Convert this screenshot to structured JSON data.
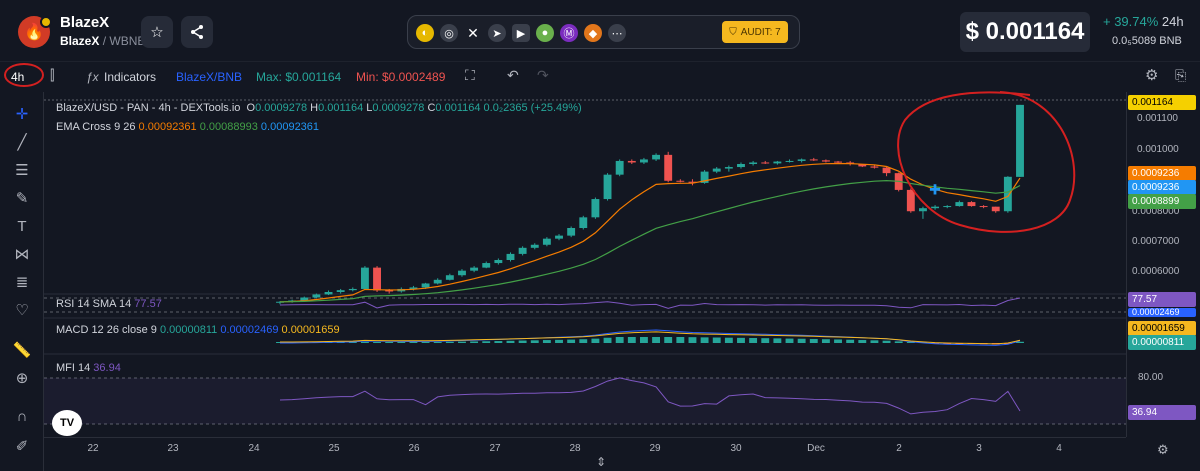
{
  "header": {
    "token_name": "BlazeX",
    "pair_base": "BlazeX",
    "pair_sep": "/",
    "pair_quote": "WBNB",
    "audit_label": "AUDIT: 7",
    "price": "$ 0.001164",
    "change_pct": "+ 39.74%",
    "change_period": "24h",
    "price_bnb": "0.0₅5089",
    "price_bnb_unit": "BNB"
  },
  "toolbar": {
    "timeframe": "4h",
    "indicators_label": "Indicators",
    "pair_switch": "BlazeX/BNB",
    "max_label": "Max: $0.001164",
    "min_label": "Min: $0.0002489"
  },
  "legend": {
    "main_title": "BlazeX/USD - PAN - 4h - DEXTools.io",
    "o_key": "O",
    "o_val": "0.0009278",
    "h_key": "H",
    "h_val": "0.001164",
    "l_key": "L",
    "l_val": "0.0009278",
    "c_key": "C",
    "c_val": "0.001164",
    "change": "0.0₂2365 (+25.49%)",
    "ema_label": "EMA Cross 9 26",
    "ema_v1": "0.00092361",
    "ema_v2": "0.00088993",
    "ema_v3": "0.00092361",
    "rsi_label": "RSI 14 SMA 14",
    "rsi_val": "77.57",
    "macd_label": "MACD 12 26 close 9",
    "macd_v1": "0.00000811",
    "macd_v2": "0.00002469",
    "macd_v3": "0.00001659",
    "mfi_label": "MFI 14",
    "mfi_val": "36.94"
  },
  "price_scale": {
    "ticks": [
      "0.001100",
      "0.001000",
      "0.0008000",
      "0.0007000",
      "0.0006000"
    ],
    "tags": [
      "0.001164",
      "0.0009236",
      "0.0009236",
      "0.0008899"
    ],
    "tag_colors": [
      "#f5d000",
      "#f57c00",
      "#2196f3",
      "#43a047"
    ]
  },
  "rsi_scale": {
    "tag": "77.57"
  },
  "macd_scale": {
    "tags": [
      "0.00002469",
      "0.00001659",
      "0.00000811"
    ]
  },
  "mfi_scale": {
    "tick": "80.00",
    "tag": "36.94"
  },
  "x_axis": {
    "ticks": [
      "22",
      "23",
      "24",
      "25",
      "26",
      "27",
      "28",
      "29",
      "30",
      "Dec",
      "2",
      "3",
      "4"
    ]
  },
  "colors": {
    "up": "#26a69a",
    "down": "#ef5350",
    "ema_fast": "#f57c00",
    "ema_slow": "#43a047",
    "annotation": "#d42020"
  },
  "chart_data": {
    "type": "candlestick",
    "title": "BlazeX/USD - PAN - 4h - DEXTools.io",
    "ylim": [
      0.00055,
      0.00118
    ],
    "candles": [
      [
        0.000515,
        0.00052,
        0.00051,
        0.000518
      ],
      [
        0.000518,
        0.000525,
        0.000515,
        0.000522
      ],
      [
        0.000522,
        0.000535,
        0.00052,
        0.000532
      ],
      [
        0.000532,
        0.000545,
        0.00053,
        0.000542
      ],
      [
        0.000542,
        0.000555,
        0.00054,
        0.00055
      ],
      [
        0.00055,
        0.00056,
        0.000545,
        0.000556
      ],
      [
        0.000556,
        0.000565,
        0.000552,
        0.00056
      ],
      [
        0.00056,
        0.000635,
        0.000558,
        0.00063
      ],
      [
        0.00063,
        0.000635,
        0.00055,
        0.000555
      ],
      [
        0.000555,
        0.00056,
        0.000545,
        0.000552
      ],
      [
        0.000552,
        0.000565,
        0.000548,
        0.00056
      ],
      [
        0.00056,
        0.00057,
        0.000555,
        0.000565
      ],
      [
        0.000565,
        0.00058,
        0.00056,
        0.000578
      ],
      [
        0.000578,
        0.000595,
        0.000575,
        0.00059
      ],
      [
        0.00059,
        0.00061,
        0.000588,
        0.000605
      ],
      [
        0.000605,
        0.000625,
        0.0006,
        0.00062
      ],
      [
        0.00062,
        0.000635,
        0.000615,
        0.00063
      ],
      [
        0.00063,
        0.00065,
        0.000628,
        0.000645
      ],
      [
        0.000645,
        0.00066,
        0.00064,
        0.000655
      ],
      [
        0.000655,
        0.00068,
        0.00065,
        0.000675
      ],
      [
        0.000675,
        0.0007,
        0.00067,
        0.000695
      ],
      [
        0.000695,
        0.00071,
        0.00069,
        0.000705
      ],
      [
        0.000705,
        0.00073,
        0.0007,
        0.000725
      ],
      [
        0.000725,
        0.00074,
        0.00072,
        0.000735
      ],
      [
        0.000735,
        0.000765,
        0.00073,
        0.00076
      ],
      [
        0.00076,
        0.0008,
        0.000755,
        0.000795
      ],
      [
        0.000795,
        0.00086,
        0.00079,
        0.000855
      ],
      [
        0.000855,
        0.00094,
        0.00085,
        0.000935
      ],
      [
        0.000935,
        0.000985,
        0.00093,
        0.00098
      ],
      [
        0.00098,
        0.000985,
        0.00097,
        0.000975
      ],
      [
        0.000975,
        0.00099,
        0.00097,
        0.000985
      ],
      [
        0.000985,
        0.001005,
        0.00098,
        0.001
      ],
      [
        0.001,
        0.00101,
        0.00091,
        0.000915
      ],
      [
        0.000915,
        0.00092,
        0.00091,
        0.000912
      ],
      [
        0.000912,
        0.00092,
        0.0009,
        0.000908
      ],
      [
        0.000908,
        0.00095,
        0.000905,
        0.000945
      ],
      [
        0.000945,
        0.00096,
        0.00094,
        0.000955
      ],
      [
        0.000955,
        0.000965,
        0.000945,
        0.00096
      ],
      [
        0.00096,
        0.000975,
        0.000955,
        0.00097
      ],
      [
        0.00097,
        0.00098,
        0.000965,
        0.000975
      ],
      [
        0.000975,
        0.00098,
        0.00097,
        0.000972
      ],
      [
        0.000972,
        0.00098,
        0.000968,
        0.000978
      ],
      [
        0.000978,
        0.000985,
        0.000975,
        0.00098
      ],
      [
        0.00098,
        0.000988,
        0.000975,
        0.000985
      ],
      [
        0.000985,
        0.00099,
        0.00098,
        0.000982
      ],
      [
        0.000982,
        0.000985,
        0.000975,
        0.000978
      ],
      [
        0.000978,
        0.00098,
        0.00097,
        0.000975
      ],
      [
        0.000975,
        0.00098,
        0.000965,
        0.00097
      ],
      [
        0.00097,
        0.00097,
        0.00096,
        0.000962
      ],
      [
        0.000962,
        0.000965,
        0.000955,
        0.000958
      ],
      [
        0.000958,
        0.00096,
        0.00093,
        0.00094
      ],
      [
        0.00094,
        0.000942,
        0.00088,
        0.000885
      ],
      [
        0.000885,
        0.00089,
        0.00081,
        0.000815
      ],
      [
        0.000815,
        0.00083,
        0.00079,
        0.000825
      ],
      [
        0.000825,
        0.000835,
        0.00082,
        0.00083
      ],
      [
        0.00083,
        0.000835,
        0.000825,
        0.000832
      ],
      [
        0.000832,
        0.00085,
        0.00083,
        0.000845
      ],
      [
        0.000845,
        0.000848,
        0.00083,
        0.000832
      ],
      [
        0.000832,
        0.000835,
        0.000825,
        0.00083
      ],
      [
        0.00083,
        0.00083,
        0.00081,
        0.000815
      ],
      [
        0.000815,
        0.00093,
        0.00081,
        0.000928
      ],
      [
        0.0009278,
        0.001164,
        0.0009278,
        0.001164
      ]
    ],
    "ema_fast_end": 0.00092361,
    "ema_slow_end": 0.00088993,
    "rsi_last": 77.57,
    "mfi_last": 36.94
  }
}
